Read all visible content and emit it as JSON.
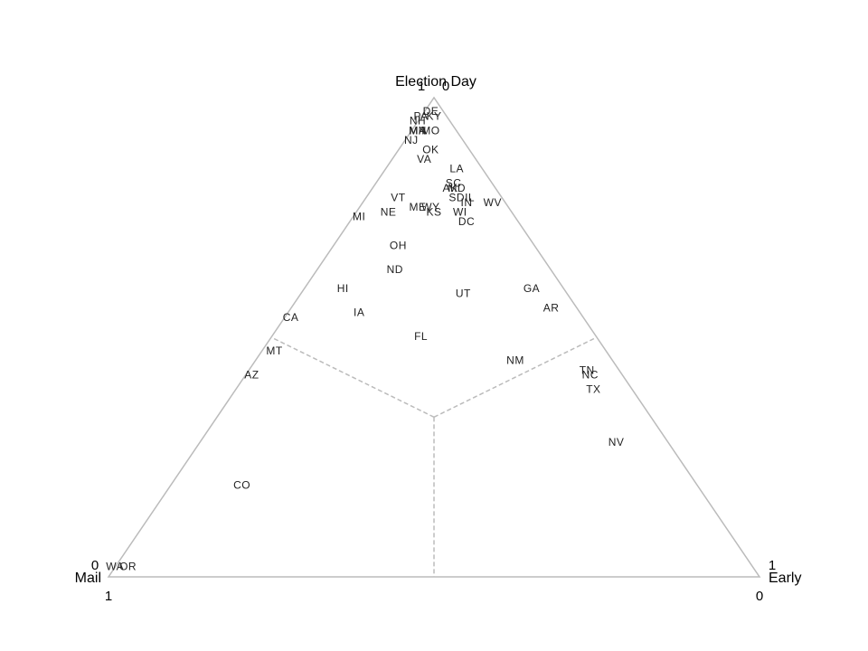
{
  "chart_data": {
    "type": "ternary",
    "labels": [
      "DE",
      "KY",
      "PA",
      "NH",
      "MA",
      "MN",
      "MO",
      "NJ",
      "OK",
      "VA",
      "LA",
      "SC",
      "AK",
      "MD",
      "SD",
      "IL",
      "IN",
      "WV",
      "VT",
      "NE",
      "ME",
      "WY",
      "KS",
      "WI",
      "DC",
      "MI",
      "OH",
      "ND",
      "HI",
      "UT",
      "GA",
      "AR",
      "CA",
      "IA",
      "FL",
      "MT",
      "NM",
      "AZ",
      "TN",
      "NC",
      "TX",
      "NV",
      "CO",
      "WA",
      "OR"
    ],
    "mail": [
      0.02,
      0.02,
      0.04,
      0.05,
      0.06,
      0.06,
      0.04,
      0.08,
      0.06,
      0.08,
      0.04,
      0.06,
      0.07,
      0.06,
      0.07,
      0.05,
      0.06,
      0.02,
      0.16,
      0.19,
      0.14,
      0.12,
      0.12,
      0.08,
      0.08,
      0.24,
      0.21,
      0.24,
      0.34,
      0.16,
      0.05,
      0.04,
      0.45,
      0.34,
      0.27,
      0.51,
      0.15,
      0.57,
      0.05,
      0.05,
      0.06,
      0.08,
      0.7,
      0.98,
      0.96
    ],
    "early": [
      0.01,
      0.02,
      0.0,
      0.0,
      0.01,
      0.01,
      0.03,
      0.01,
      0.05,
      0.05,
      0.11,
      0.12,
      0.12,
      0.13,
      0.14,
      0.16,
      0.16,
      0.2,
      0.05,
      0.05,
      0.09,
      0.11,
      0.12,
      0.16,
      0.18,
      0.01,
      0.1,
      0.12,
      0.06,
      0.25,
      0.35,
      0.4,
      0.01,
      0.11,
      0.23,
      0.02,
      0.4,
      0.01,
      0.52,
      0.53,
      0.55,
      0.64,
      0.11,
      0.0,
      0.02
    ],
    "election_day": [
      0.97,
      0.96,
      0.96,
      0.95,
      0.93,
      0.93,
      0.93,
      0.91,
      0.89,
      0.87,
      0.85,
      0.82,
      0.81,
      0.81,
      0.79,
      0.79,
      0.78,
      0.78,
      0.79,
      0.76,
      0.77,
      0.77,
      0.76,
      0.76,
      0.74,
      0.75,
      0.69,
      0.64,
      0.6,
      0.59,
      0.6,
      0.56,
      0.54,
      0.55,
      0.5,
      0.47,
      0.45,
      0.42,
      0.43,
      0.42,
      0.39,
      0.28,
      0.19,
      0.02,
      0.02
    ],
    "axes": {
      "mail": {
        "title": "Mail",
        "ticks": [
          0,
          1
        ]
      },
      "early": {
        "title": "Early",
        "ticks": [
          0,
          1
        ]
      },
      "election_day": {
        "title": "Election Day",
        "ticks": [
          0,
          1
        ]
      }
    }
  }
}
